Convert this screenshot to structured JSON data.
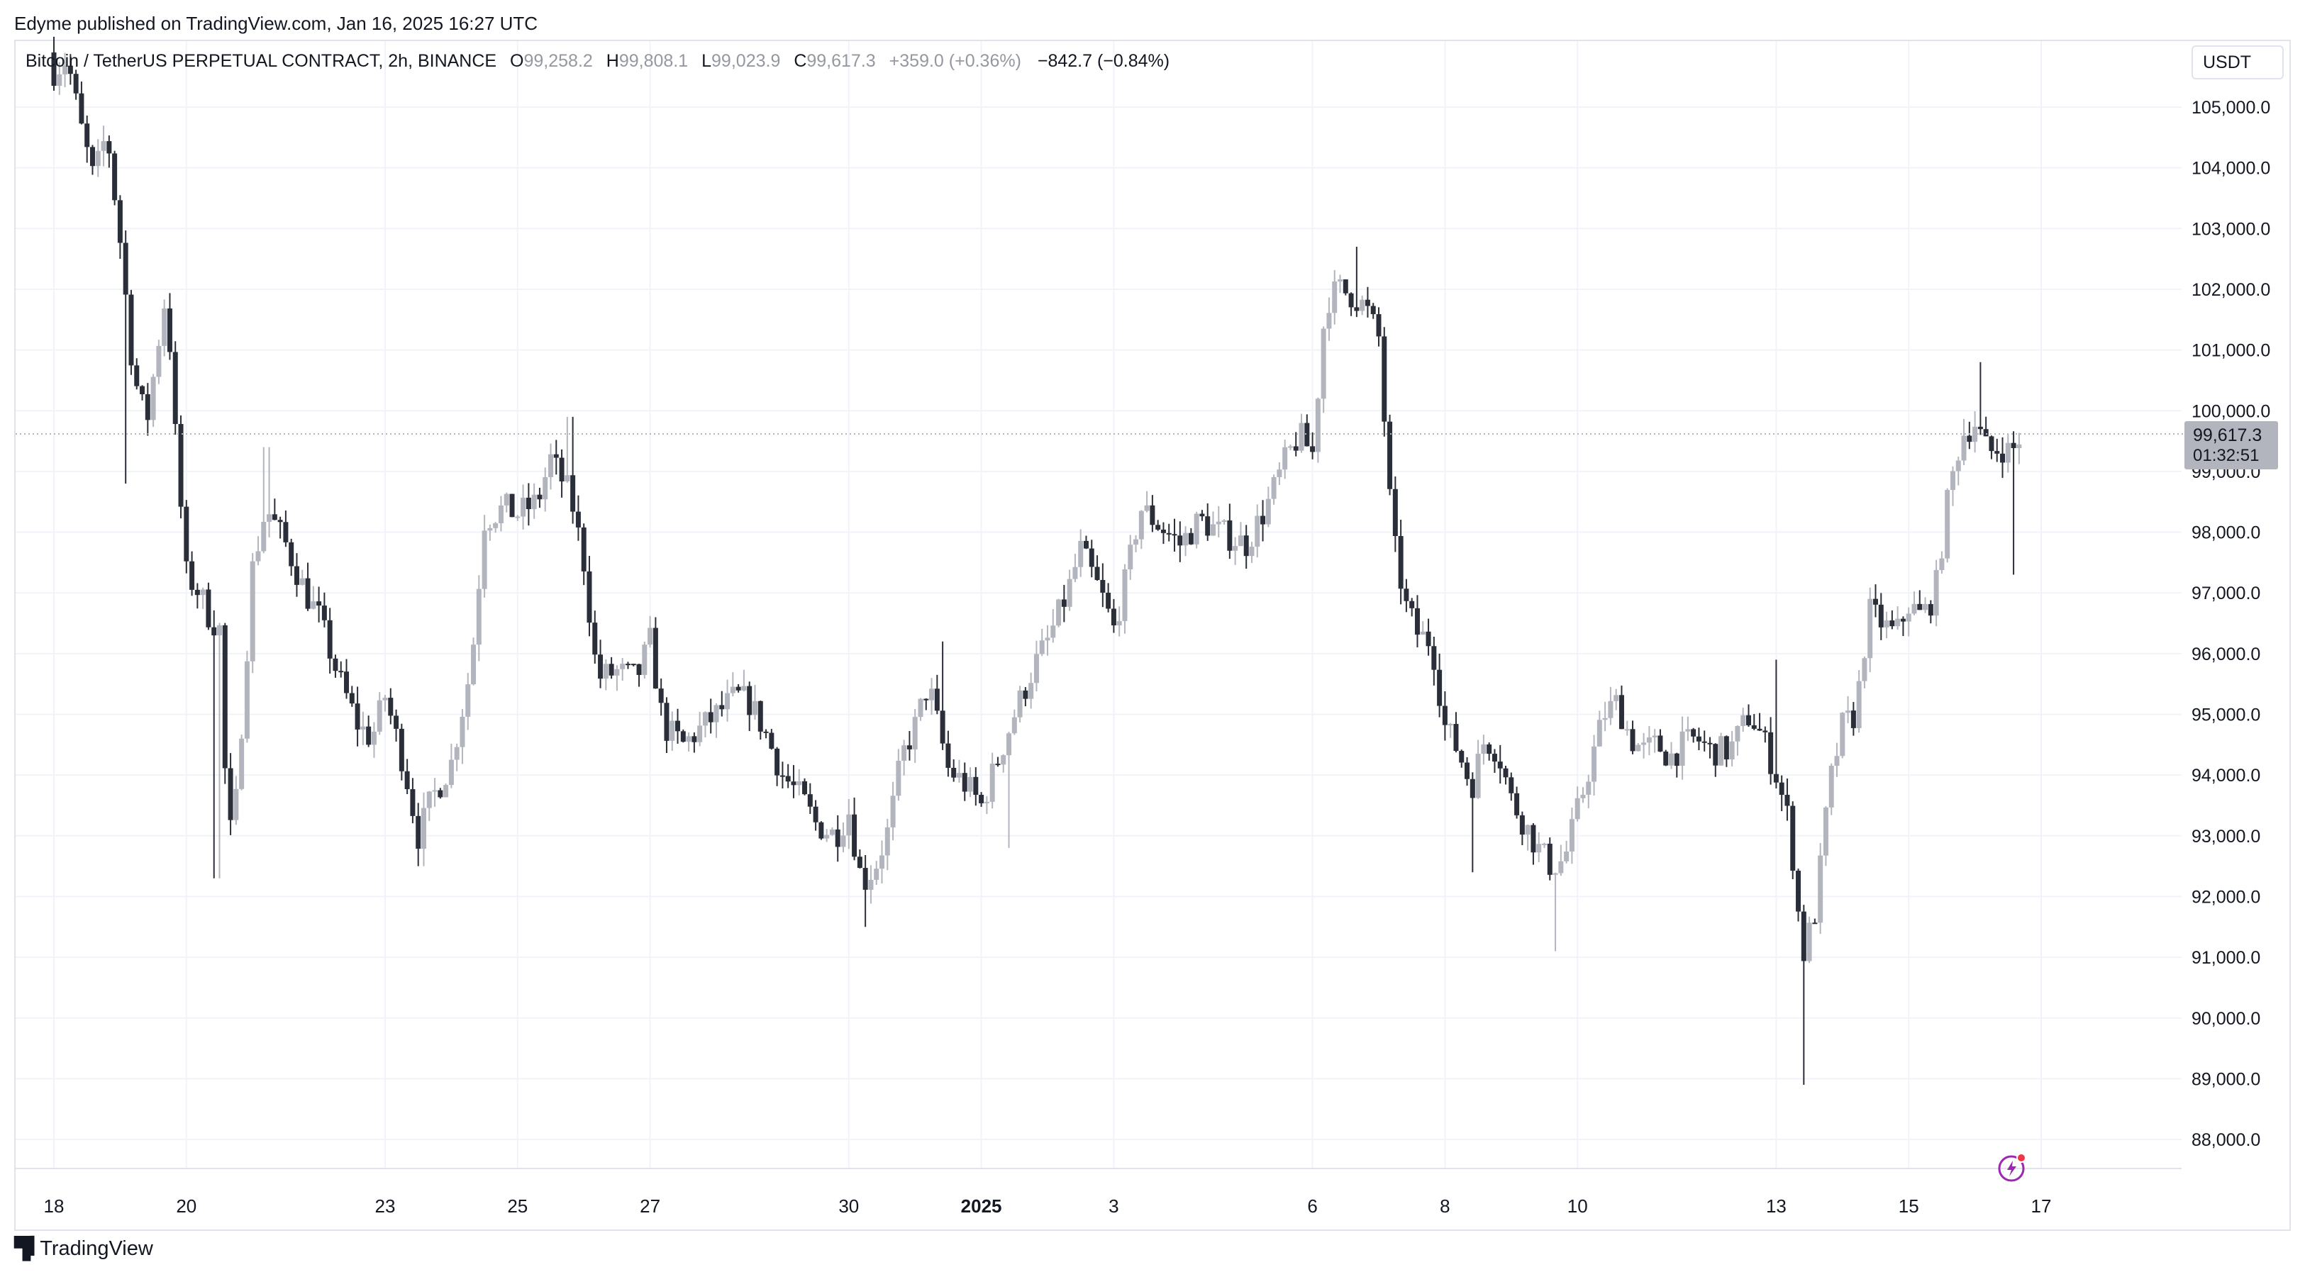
{
  "publisher": "Edyme published on TradingView.com, Jan 16, 2025 16:27 UTC",
  "legend": {
    "symbol": "Bitcoin / TetherUS PERPETUAL CONTRACT, 2h, BINANCE",
    "open_label": "O",
    "open": "99,258.2",
    "high_label": "H",
    "high": "99,808.1",
    "low_label": "L",
    "low": "99,023.9",
    "close_label": "C",
    "close": "99,617.3",
    "change": "+359.0 (+0.36%)",
    "session_change": "−842.7 (−0.84%)"
  },
  "currency": "USDT",
  "price_badge": {
    "price": "99,617.3",
    "countdown": "01:32:51"
  },
  "footer": {
    "brand": "TradingView",
    "logo_icon": "tradingview-logo-icon"
  },
  "colors": {
    "up": "#b2b5be",
    "down": "#2a2e39",
    "grid": "#f0f3fa",
    "badge": "#b2b5be"
  },
  "chart_data": {
    "type": "candlestick",
    "title": "Bitcoin / TetherUS PERPETUAL CONTRACT, 2h, BINANCE",
    "ylim": [
      87000,
      106000
    ],
    "y_ticks": [
      "105,000.0",
      "104,000.0",
      "103,000.0",
      "102,000.0",
      "101,000.0",
      "100,000.0",
      "99,000.0",
      "98,000.0",
      "97,000.0",
      "96,000.0",
      "95,000.0",
      "94,000.0",
      "93,000.0",
      "92,000.0",
      "91,000.0",
      "90,000.0",
      "89,000.0",
      "88,000.0"
    ],
    "y_tick_values": [
      105000,
      104000,
      103000,
      102000,
      101000,
      100000,
      99000,
      98000,
      97000,
      96000,
      95000,
      94000,
      93000,
      92000,
      91000,
      90000,
      89000,
      88000
    ],
    "x_ticks": [
      {
        "label": "18",
        "day": 0,
        "bold": false
      },
      {
        "label": "20",
        "day": 2,
        "bold": false
      },
      {
        "label": "23",
        "day": 5,
        "bold": false
      },
      {
        "label": "25",
        "day": 7,
        "bold": false
      },
      {
        "label": "27",
        "day": 9,
        "bold": false
      },
      {
        "label": "30",
        "day": 12,
        "bold": false
      },
      {
        "label": "2025",
        "day": 14,
        "bold": true
      },
      {
        "label": "3",
        "day": 16,
        "bold": false
      },
      {
        "label": "6",
        "day": 19,
        "bold": false
      },
      {
        "label": "8",
        "day": 21,
        "bold": false
      },
      {
        "label": "10",
        "day": 23,
        "bold": false
      },
      {
        "label": "13",
        "day": 26,
        "bold": false
      },
      {
        "label": "15",
        "day": 28,
        "bold": false
      },
      {
        "label": "17",
        "day": 30,
        "bold": false
      }
    ],
    "last_price": 99617.3,
    "anchors": [
      [
        0.0,
        105600
      ],
      [
        0.2,
        105800
      ],
      [
        0.4,
        104700
      ],
      [
        0.6,
        103800
      ],
      [
        0.8,
        104600
      ],
      [
        1.0,
        102800
      ],
      [
        1.2,
        100600
      ],
      [
        1.4,
        99800
      ],
      [
        1.6,
        101300
      ],
      [
        1.7,
        102000
      ],
      [
        1.85,
        99300
      ],
      [
        2.0,
        97300
      ],
      [
        2.2,
        97000
      ],
      [
        2.35,
        96600
      ],
      [
        2.5,
        96400
      ],
      [
        2.6,
        93600
      ],
      [
        2.7,
        92800
      ],
      [
        3.0,
        97400
      ],
      [
        3.2,
        98400
      ],
      [
        3.5,
        97800
      ],
      [
        3.8,
        97000
      ],
      [
        4.0,
        96600
      ],
      [
        4.3,
        95600
      ],
      [
        4.6,
        94800
      ],
      [
        4.8,
        94600
      ],
      [
        5.0,
        95300
      ],
      [
        5.3,
        94100
      ],
      [
        5.5,
        93000
      ],
      [
        5.7,
        93600
      ],
      [
        6.0,
        94200
      ],
      [
        6.3,
        95800
      ],
      [
        6.5,
        98200
      ],
      [
        6.8,
        98400
      ],
      [
        7.0,
        98300
      ],
      [
        7.3,
        98500
      ],
      [
        7.5,
        99200
      ],
      [
        7.8,
        98600
      ],
      [
        8.0,
        97500
      ],
      [
        8.2,
        95600
      ],
      [
        8.5,
        95700
      ],
      [
        8.8,
        95600
      ],
      [
        9.0,
        96200
      ],
      [
        9.2,
        94800
      ],
      [
        9.5,
        94500
      ],
      [
        9.8,
        94800
      ],
      [
        10.0,
        95000
      ],
      [
        10.3,
        95300
      ],
      [
        10.5,
        95200
      ],
      [
        10.7,
        94800
      ],
      [
        11.0,
        94000
      ],
      [
        11.3,
        93600
      ],
      [
        11.5,
        93200
      ],
      [
        11.8,
        93000
      ],
      [
        12.0,
        93400
      ],
      [
        12.2,
        92200
      ],
      [
        12.4,
        92500
      ],
      [
        12.6,
        93100
      ],
      [
        12.8,
        94300
      ],
      [
        13.0,
        94800
      ],
      [
        13.2,
        95500
      ],
      [
        13.5,
        94100
      ],
      [
        13.8,
        93800
      ],
      [
        14.0,
        93500
      ],
      [
        14.3,
        94400
      ],
      [
        14.5,
        95000
      ],
      [
        14.8,
        95800
      ],
      [
        15.0,
        96200
      ],
      [
        15.3,
        97000
      ],
      [
        15.5,
        97700
      ],
      [
        15.8,
        97000
      ],
      [
        16.0,
        96400
      ],
      [
        16.2,
        97300
      ],
      [
        16.4,
        98400
      ],
      [
        16.6,
        98200
      ],
      [
        16.8,
        98000
      ],
      [
        17.0,
        97800
      ],
      [
        17.3,
        98200
      ],
      [
        17.6,
        98000
      ],
      [
        18.0,
        97800
      ],
      [
        18.3,
        98400
      ],
      [
        18.6,
        99200
      ],
      [
        18.8,
        99600
      ],
      [
        19.0,
        99300
      ],
      [
        19.2,
        101800
      ],
      [
        19.4,
        102000
      ],
      [
        19.6,
        101900
      ],
      [
        19.8,
        101700
      ],
      [
        20.0,
        101200
      ],
      [
        20.2,
        98000
      ],
      [
        20.4,
        96800
      ],
      [
        20.6,
        96300
      ],
      [
        20.8,
        96200
      ],
      [
        21.0,
        94800
      ],
      [
        21.2,
        94400
      ],
      [
        21.4,
        93800
      ],
      [
        21.6,
        94600
      ],
      [
        21.8,
        94400
      ],
      [
        22.0,
        93600
      ],
      [
        22.2,
        93200
      ],
      [
        22.4,
        92800
      ],
      [
        22.6,
        92500
      ],
      [
        22.8,
        92600
      ],
      [
        23.0,
        93400
      ],
      [
        23.2,
        94200
      ],
      [
        23.4,
        95000
      ],
      [
        23.6,
        95200
      ],
      [
        23.8,
        94600
      ],
      [
        24.0,
        94400
      ],
      [
        24.2,
        94500
      ],
      [
        24.4,
        94300
      ],
      [
        24.6,
        94500
      ],
      [
        24.8,
        94600
      ],
      [
        25.0,
        94400
      ],
      [
        25.3,
        94400
      ],
      [
        25.6,
        95000
      ],
      [
        25.8,
        94600
      ],
      [
        26.0,
        94000
      ],
      [
        26.2,
        93200
      ],
      [
        26.4,
        91000
      ],
      [
        26.6,
        91800
      ],
      [
        26.8,
        93800
      ],
      [
        27.0,
        94800
      ],
      [
        27.2,
        95000
      ],
      [
        27.4,
        96700
      ],
      [
        27.6,
        96500
      ],
      [
        27.8,
        96300
      ],
      [
        28.0,
        96800
      ],
      [
        28.2,
        96600
      ],
      [
        28.4,
        97000
      ],
      [
        28.6,
        98600
      ],
      [
        28.8,
        99600
      ],
      [
        29.0,
        99800
      ],
      [
        29.2,
        99300
      ],
      [
        29.4,
        99400
      ],
      [
        29.55,
        99300
      ],
      [
        29.7,
        99600
      ]
    ],
    "low_spikes": [
      {
        "day": 2.45,
        "low": 92300
      },
      {
        "day": 5.55,
        "low": 92500
      },
      {
        "day": 12.25,
        "low": 91500
      },
      {
        "day": 21.45,
        "low": 92400
      },
      {
        "day": 22.7,
        "low": 91100
      },
      {
        "day": 26.45,
        "low": 88900
      },
      {
        "day": 29.6,
        "low": 97300
      },
      {
        "day": 1.1,
        "low": 98800
      },
      {
        "day": 14.4,
        "low": 92800
      }
    ],
    "high_spikes": [
      {
        "day": 19.65,
        "high": 102700
      },
      {
        "day": 29.05,
        "high": 100800
      },
      {
        "day": 7.8,
        "high": 99900
      },
      {
        "day": 26.0,
        "high": 95900
      },
      {
        "day": 3.2,
        "high": 99400
      },
      {
        "day": 13.4,
        "high": 96200
      }
    ]
  }
}
